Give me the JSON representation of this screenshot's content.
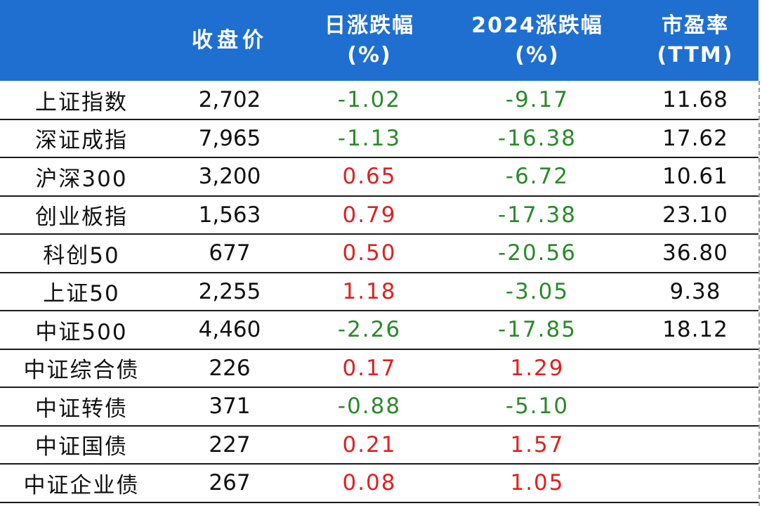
{
  "colors": {
    "header_bg": "#1f6fd1",
    "up": "#e02020",
    "down": "#2a8a2a",
    "text": "#111111"
  },
  "header": {
    "col0": "",
    "col1": "收盘价",
    "col2_line1": "日涨跌幅",
    "col2_line2": "(%)",
    "col3_line1": "2024涨跌幅",
    "col3_line2": "(%)",
    "col4_line1": "市盈率",
    "col4_line2": "(TTM)"
  },
  "rows": [
    {
      "name": "上证指数",
      "close": "2,702",
      "daily": "-1.02",
      "daily_dir": "down",
      "ytd": "-9.17",
      "ytd_dir": "down",
      "pe": "11.68"
    },
    {
      "name": "深证成指",
      "close": "7,965",
      "daily": "-1.13",
      "daily_dir": "down",
      "ytd": "-16.38",
      "ytd_dir": "down",
      "pe": "17.62"
    },
    {
      "name": "沪深300",
      "close": "3,200",
      "daily": "0.65",
      "daily_dir": "up",
      "ytd": "-6.72",
      "ytd_dir": "down",
      "pe": "10.61"
    },
    {
      "name": "创业板指",
      "close": "1,563",
      "daily": "0.79",
      "daily_dir": "up",
      "ytd": "-17.38",
      "ytd_dir": "down",
      "pe": "23.10"
    },
    {
      "name": "科创50",
      "close": "677",
      "daily": "0.50",
      "daily_dir": "up",
      "ytd": "-20.56",
      "ytd_dir": "down",
      "pe": "36.80"
    },
    {
      "name": "上证50",
      "close": "2,255",
      "daily": "1.18",
      "daily_dir": "up",
      "ytd": "-3.05",
      "ytd_dir": "down",
      "pe": "9.38"
    },
    {
      "name": "中证500",
      "close": "4,460",
      "daily": "-2.26",
      "daily_dir": "down",
      "ytd": "-17.85",
      "ytd_dir": "down",
      "pe": "18.12"
    },
    {
      "name": "中证综合债",
      "close": "226",
      "daily": "0.17",
      "daily_dir": "up",
      "ytd": "1.29",
      "ytd_dir": "up",
      "pe": ""
    },
    {
      "name": "中证转债",
      "close": "371",
      "daily": "-0.88",
      "daily_dir": "down",
      "ytd": "-5.10",
      "ytd_dir": "down",
      "pe": ""
    },
    {
      "name": "中证国债",
      "close": "227",
      "daily": "0.21",
      "daily_dir": "up",
      "ytd": "1.57",
      "ytd_dir": "up",
      "pe": ""
    },
    {
      "name": "中证企业债",
      "close": "267",
      "daily": "0.08",
      "daily_dir": "up",
      "ytd": "1.05",
      "ytd_dir": "up",
      "pe": ""
    }
  ]
}
